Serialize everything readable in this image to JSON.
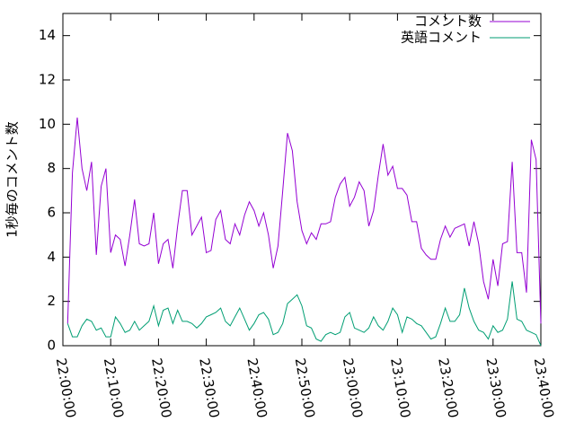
{
  "chart_data": {
    "type": "line",
    "ylabel": "1秒毎のコメント数",
    "x": [
      "22:01:00",
      "22:02:00",
      "22:03:00",
      "22:04:00",
      "22:05:00",
      "22:06:00",
      "22:07:00",
      "22:08:00",
      "22:09:00",
      "22:10:00",
      "22:11:00",
      "22:12:00",
      "22:13:00",
      "22:14:00",
      "22:15:00",
      "22:16:00",
      "22:17:00",
      "22:18:00",
      "22:19:00",
      "22:20:00",
      "22:21:00",
      "22:22:00",
      "22:23:00",
      "22:24:00",
      "22:25:00",
      "22:26:00",
      "22:27:00",
      "22:28:00",
      "22:29:00",
      "22:30:00",
      "22:31:00",
      "22:32:00",
      "22:33:00",
      "22:34:00",
      "22:35:00",
      "22:36:00",
      "22:37:00",
      "22:38:00",
      "22:39:00",
      "22:40:00",
      "22:41:00",
      "22:42:00",
      "22:43:00",
      "22:44:00",
      "22:45:00",
      "22:46:00",
      "22:47:00",
      "22:48:00",
      "22:49:00",
      "22:50:00",
      "22:51:00",
      "22:52:00",
      "22:53:00",
      "22:54:00",
      "22:55:00",
      "22:56:00",
      "22:57:00",
      "22:58:00",
      "22:59:00",
      "23:00:00",
      "23:01:00",
      "23:02:00",
      "23:03:00",
      "23:04:00",
      "23:05:00",
      "23:06:00",
      "23:07:00",
      "23:08:00",
      "23:09:00",
      "23:10:00",
      "23:11:00",
      "23:12:00",
      "23:13:00",
      "23:14:00",
      "23:15:00",
      "23:16:00",
      "23:17:00",
      "23:18:00",
      "23:19:00",
      "23:20:00",
      "23:21:00",
      "23:22:00",
      "23:23:00",
      "23:24:00",
      "23:25:00",
      "23:26:00",
      "23:27:00",
      "23:28:00",
      "23:29:00",
      "23:30:00",
      "23:31:00",
      "23:32:00",
      "23:33:00",
      "23:34:00",
      "23:35:00",
      "23:36:00",
      "23:37:00",
      "23:38:00",
      "23:39:00",
      "23:40:00"
    ],
    "series": [
      {
        "name": "コメント数",
        "color": "#9400d3",
        "values": [
          1.0,
          7.8,
          10.3,
          8.0,
          7.0,
          8.3,
          4.1,
          7.2,
          8.0,
          4.2,
          5.0,
          4.8,
          3.6,
          5.0,
          6.6,
          4.6,
          4.5,
          4.6,
          6.0,
          3.7,
          4.6,
          4.8,
          3.5,
          5.4,
          7.0,
          7.0,
          5.0,
          5.4,
          5.8,
          4.2,
          4.3,
          5.7,
          6.1,
          4.8,
          4.6,
          5.5,
          5.0,
          5.9,
          6.5,
          6.1,
          5.4,
          6.0,
          5.0,
          3.5,
          4.5,
          7.0,
          9.6,
          8.8,
          6.5,
          5.2,
          4.6,
          5.1,
          4.8,
          5.5,
          5.5,
          5.6,
          6.7,
          7.3,
          7.6,
          6.3,
          6.7,
          7.4,
          7.0,
          5.4,
          6.1,
          7.7,
          9.1,
          7.7,
          8.1,
          7.1,
          7.1,
          6.8,
          5.6,
          5.6,
          4.4,
          4.1,
          3.9,
          3.9,
          4.8,
          5.4,
          4.9,
          5.3,
          5.4,
          5.5,
          4.5,
          5.6,
          4.6,
          2.9,
          2.1,
          3.9,
          2.7,
          4.6,
          4.7,
          8.3,
          4.2,
          4.2,
          2.4,
          9.3,
          8.4,
          1.0
        ]
      },
      {
        "name": "英語コメント",
        "color": "#009e73",
        "values": [
          1.0,
          0.4,
          0.4,
          0.9,
          1.2,
          1.1,
          0.7,
          0.8,
          0.4,
          0.4,
          1.3,
          1.0,
          0.6,
          0.7,
          1.1,
          0.7,
          0.9,
          1.1,
          1.8,
          0.9,
          1.6,
          1.7,
          1.0,
          1.6,
          1.1,
          1.1,
          1.0,
          0.8,
          1.0,
          1.3,
          1.4,
          1.5,
          1.7,
          1.1,
          0.9,
          1.3,
          1.7,
          1.2,
          0.7,
          1.0,
          1.4,
          1.5,
          1.2,
          0.5,
          0.6,
          1.0,
          1.9,
          2.1,
          2.3,
          1.8,
          0.9,
          0.8,
          0.3,
          0.2,
          0.5,
          0.6,
          0.5,
          0.6,
          1.3,
          1.5,
          0.8,
          0.7,
          0.6,
          0.8,
          1.3,
          0.9,
          0.7,
          1.1,
          1.7,
          1.4,
          0.6,
          1.3,
          1.2,
          1.0,
          0.9,
          0.6,
          0.3,
          0.4,
          1.0,
          1.7,
          1.1,
          1.1,
          1.4,
          2.6,
          1.7,
          1.1,
          0.7,
          0.6,
          0.3,
          0.9,
          0.6,
          0.7,
          1.2,
          2.9,
          1.2,
          1.1,
          0.7,
          0.6,
          0.5,
          0.0
        ]
      }
    ],
    "xlim": [
      "22:00:00",
      "23:40:00"
    ],
    "xticks": [
      "22:00:00",
      "22:10:00",
      "22:20:00",
      "22:30:00",
      "22:40:00",
      "22:50:00",
      "23:00:00",
      "23:10:00",
      "23:20:00",
      "23:30:00",
      "23:40:00"
    ],
    "ylim": [
      0,
      15
    ],
    "yticks": [
      0,
      2,
      4,
      6,
      8,
      10,
      12,
      14
    ],
    "legend": "top-right"
  }
}
